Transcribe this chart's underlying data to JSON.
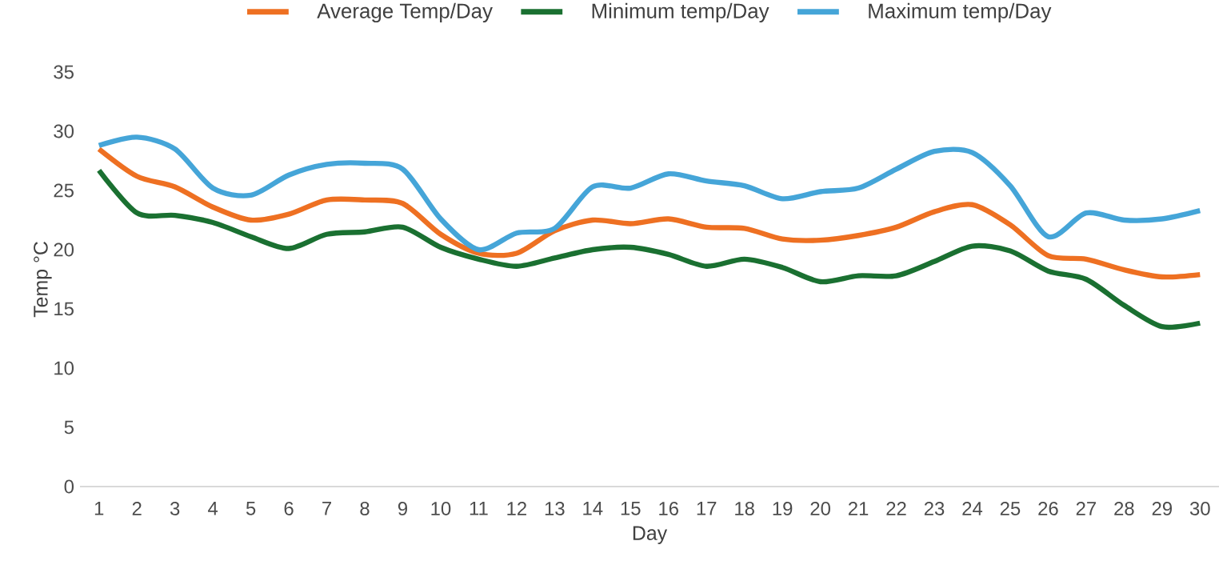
{
  "chart_data": {
    "type": "line",
    "xlabel": "Day",
    "ylabel": "Temp °C",
    "categories": [
      "1",
      "2",
      "3",
      "4",
      "5",
      "6",
      "7",
      "8",
      "9",
      "10",
      "11",
      "12",
      "13",
      "14",
      "15",
      "16",
      "17",
      "18",
      "19",
      "20",
      "21",
      "22",
      "23",
      "24",
      "25",
      "26",
      "27",
      "28",
      "29",
      "30"
    ],
    "series": [
      {
        "name": "Average Temp/Day",
        "color": "#ee7022",
        "values": [
          28.5,
          26.2,
          25.3,
          23.6,
          22.5,
          23,
          24.2,
          24.2,
          23.9,
          21.3,
          19.7,
          19.7,
          21.6,
          22.5,
          22.2,
          22.6,
          21.9,
          21.8,
          20.9,
          20.8,
          21.2,
          21.9,
          23.2,
          23.8,
          22.1,
          19.5,
          19.2,
          18.3,
          17.7,
          17.9
        ]
      },
      {
        "name": "Minimum temp/Day",
        "color": "#1a7031",
        "values": [
          26.7,
          23.1,
          22.9,
          22.3,
          21.1,
          20.1,
          21.3,
          21.5,
          21.9,
          20.2,
          19.2,
          18.6,
          19.3,
          20,
          20.2,
          19.6,
          18.6,
          19.2,
          18.5,
          17.3,
          17.8,
          17.8,
          19,
          20.3,
          19.9,
          18.2,
          17.5,
          15.3,
          13.5,
          13.8
        ]
      },
      {
        "name": "Maximum temp/Day",
        "color": "#45a5d8",
        "values": [
          28.8,
          29.5,
          28.5,
          25.2,
          24.6,
          26.3,
          27.2,
          27.3,
          26.8,
          22.6,
          20,
          21.4,
          21.8,
          25.3,
          25.2,
          26.4,
          25.8,
          25.4,
          24.3,
          24.9,
          25.2,
          26.8,
          28.3,
          28.2,
          25.4,
          21.1,
          23.1,
          22.5,
          22.6,
          23.3
        ]
      }
    ],
    "ylim": [
      0,
      35
    ],
    "yticks": [
      0,
      5,
      10,
      15,
      20,
      25,
      30,
      35
    ],
    "grid": false,
    "legend": "top",
    "marker": "none",
    "line_style": "solid"
  }
}
